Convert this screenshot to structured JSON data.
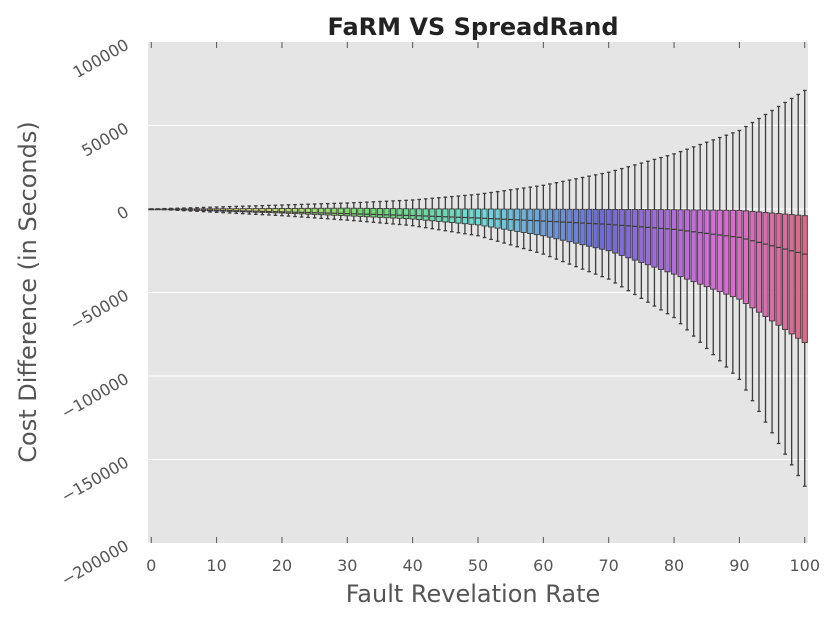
{
  "chart_data": {
    "type": "box",
    "title": "FaRM VS SpreadRand",
    "xlabel": "Fault Revelation Rate",
    "ylabel": "Cost Difference (in Seconds)",
    "xlim": [
      -0.5,
      100.5
    ],
    "ylim": [
      -200000,
      100000
    ],
    "xticks": [
      "0",
      "10",
      "20",
      "30",
      "40",
      "50",
      "60",
      "70",
      "80",
      "90",
      "100"
    ],
    "yticks": [
      "100000",
      "50000",
      "0",
      "−50000",
      "−100000",
      "−150000",
      "−200000"
    ],
    "ytick_values": [
      100000,
      50000,
      0,
      -50000,
      -100000,
      -150000,
      -200000
    ],
    "grid": true,
    "background": "#e5e5e5",
    "x": [
      0,
      1,
      2,
      3,
      4,
      5,
      6,
      7,
      8,
      9,
      10,
      11,
      12,
      13,
      14,
      15,
      16,
      17,
      18,
      19,
      20,
      21,
      22,
      23,
      24,
      25,
      26,
      27,
      28,
      29,
      30,
      31,
      32,
      33,
      34,
      35,
      36,
      37,
      38,
      39,
      40,
      41,
      42,
      43,
      44,
      45,
      46,
      47,
      48,
      49,
      50,
      51,
      52,
      53,
      54,
      55,
      56,
      57,
      58,
      59,
      60,
      61,
      62,
      63,
      64,
      65,
      66,
      67,
      68,
      69,
      70,
      71,
      72,
      73,
      74,
      75,
      76,
      77,
      78,
      79,
      80,
      81,
      82,
      83,
      84,
      85,
      86,
      87,
      88,
      89,
      90,
      91,
      92,
      93,
      94,
      95,
      96,
      97,
      98,
      99,
      100
    ],
    "whisker_high": [
      0,
      120,
      240,
      360,
      480,
      600,
      720,
      840,
      960,
      1080,
      1200,
      1320,
      1440,
      1560,
      1680,
      1800,
      1920,
      2040,
      2160,
      2280,
      2400,
      2520,
      2640,
      2760,
      2880,
      3000,
      3120,
      3240,
      3360,
      3480,
      3600,
      3778,
      3956,
      4133,
      4311,
      4489,
      4667,
      4844,
      5022,
      5200,
      5400,
      5740,
      6080,
      6420,
      6760,
      7100,
      7440,
      7780,
      8120,
      8460,
      8800,
      9340,
      9880,
      10420,
      10960,
      11500,
      12040,
      12580,
      13120,
      13660,
      14200,
      14980,
      15760,
      16540,
      17320,
      18100,
      18880,
      19660,
      20440,
      21220,
      22000,
      23100,
      24200,
      25300,
      26400,
      27500,
      28600,
      29700,
      30800,
      31900,
      33000,
      34400,
      35800,
      37200,
      38600,
      40000,
      41400,
      42800,
      44200,
      45600,
      47000,
      49400,
      51800,
      54200,
      56600,
      59000,
      61400,
      63800,
      66200,
      68600,
      71000
    ],
    "whisker_low": [
      0,
      -200,
      -400,
      -600,
      -800,
      -1000,
      -1200,
      -1400,
      -1600,
      -1800,
      -2000,
      -2200,
      -2400,
      -2600,
      -2800,
      -3000,
      -3200,
      -3400,
      -3600,
      -3800,
      -4000,
      -4267,
      -4533,
      -4800,
      -5067,
      -5333,
      -5600,
      -5867,
      -6133,
      -6400,
      -6667,
      -6994,
      -7322,
      -7650,
      -7978,
      -8306,
      -8633,
      -8961,
      -9289,
      -9617,
      -10000,
      -10600,
      -11200,
      -11800,
      -12400,
      -13000,
      -13600,
      -14200,
      -14800,
      -15400,
      -16000,
      -17100,
      -18200,
      -19300,
      -20400,
      -21500,
      -22600,
      -23700,
      -24800,
      -25900,
      -27000,
      -28500,
      -30000,
      -31500,
      -33000,
      -34500,
      -36000,
      -37500,
      -39000,
      -40500,
      -42000,
      -44300,
      -46600,
      -48900,
      -51200,
      -53500,
      -55800,
      -58100,
      -60400,
      -62700,
      -65000,
      -68700,
      -72400,
      -76100,
      -79800,
      -83500,
      -87200,
      -90900,
      -94600,
      -98300,
      -102000,
      -108400,
      -114800,
      -121200,
      -127600,
      -134000,
      -140400,
      -146800,
      -153200,
      -159600,
      -166000
    ],
    "q3": [
      0,
      15,
      30,
      45,
      60,
      75,
      90,
      105,
      120,
      135,
      150,
      165,
      180,
      195,
      210,
      225,
      240,
      255,
      270,
      285,
      300,
      320,
      340,
      360,
      380,
      400,
      420,
      440,
      460,
      480,
      500,
      461,
      422,
      383,
      344,
      306,
      267,
      228,
      189,
      150,
      100,
      90,
      80,
      70,
      60,
      50,
      40,
      30,
      20,
      10,
      0,
      -10,
      -20,
      -30,
      -40,
      -50,
      -60,
      -70,
      -80,
      -90,
      -100,
      -110,
      -120,
      -130,
      -140,
      -150,
      -160,
      -170,
      -180,
      -190,
      -200,
      -220,
      -240,
      -260,
      -280,
      -300,
      -320,
      -340,
      -360,
      -380,
      -400,
      -440,
      -480,
      -520,
      -560,
      -600,
      -640,
      -680,
      -720,
      -760,
      -800,
      -1120,
      -1440,
      -1760,
      -2080,
      -2400,
      -2720,
      -3040,
      -3360,
      -3680,
      -4000
    ],
    "median": [
      0,
      -80,
      -160,
      -240,
      -320,
      -400,
      -480,
      -560,
      -640,
      -720,
      -800,
      -890,
      -980,
      -1070,
      -1160,
      -1250,
      -1340,
      -1430,
      -1520,
      -1610,
      -1700,
      -1807,
      -1913,
      -2020,
      -2127,
      -2233,
      -2340,
      -2447,
      -2553,
      -2660,
      -2767,
      -2883,
      -3000,
      -3117,
      -3233,
      -3350,
      -3467,
      -3583,
      -3700,
      -3817,
      -3900,
      -4050,
      -4200,
      -4350,
      -4500,
      -4650,
      -4800,
      -4950,
      -5100,
      -5250,
      -5400,
      -5580,
      -5760,
      -5940,
      -6120,
      -6300,
      -6480,
      -6660,
      -6840,
      -7020,
      -7200,
      -7400,
      -7600,
      -7800,
      -8000,
      -8200,
      -8400,
      -8600,
      -8800,
      -9000,
      -9200,
      -9500,
      -9800,
      -10100,
      -10400,
      -10700,
      -11000,
      -11300,
      -11600,
      -11900,
      -12200,
      -12680,
      -13160,
      -13640,
      -14120,
      -14600,
      -15080,
      -15560,
      -16040,
      -16520,
      -17000,
      -18000,
      -19000,
      -20000,
      -21000,
      -22000,
      -23000,
      -24000,
      -25000,
      -26000,
      -27000
    ],
    "q1": [
      0,
      -120,
      -240,
      -360,
      -480,
      -600,
      -720,
      -840,
      -960,
      -1080,
      -1200,
      -1320,
      -1440,
      -1560,
      -1680,
      -1800,
      -1920,
      -2040,
      -2160,
      -2280,
      -2400,
      -2567,
      -2733,
      -2900,
      -3067,
      -3233,
      -3400,
      -3567,
      -3733,
      -3900,
      -4067,
      -4256,
      -4444,
      -4633,
      -4822,
      -5011,
      -5200,
      -5389,
      -5578,
      -5767,
      -6000,
      -6350,
      -6700,
      -7050,
      -7400,
      -7750,
      -8100,
      -8450,
      -8800,
      -9150,
      -9500,
      -10150,
      -10800,
      -11450,
      -12100,
      -12750,
      -13400,
      -14050,
      -14700,
      -15350,
      -16000,
      -16900,
      -17800,
      -18700,
      -19600,
      -20500,
      -21400,
      -22300,
      -23200,
      -24100,
      -25000,
      -26400,
      -27800,
      -29200,
      -30600,
      -32000,
      -33400,
      -34800,
      -36200,
      -37600,
      -39000,
      -40500,
      -42000,
      -43500,
      -45000,
      -46500,
      -48000,
      -49500,
      -51000,
      -52500,
      -54000,
      -56600,
      -59200,
      -61800,
      -64400,
      -67000,
      -69600,
      -72200,
      -74800,
      -77400,
      -80000
    ]
  }
}
